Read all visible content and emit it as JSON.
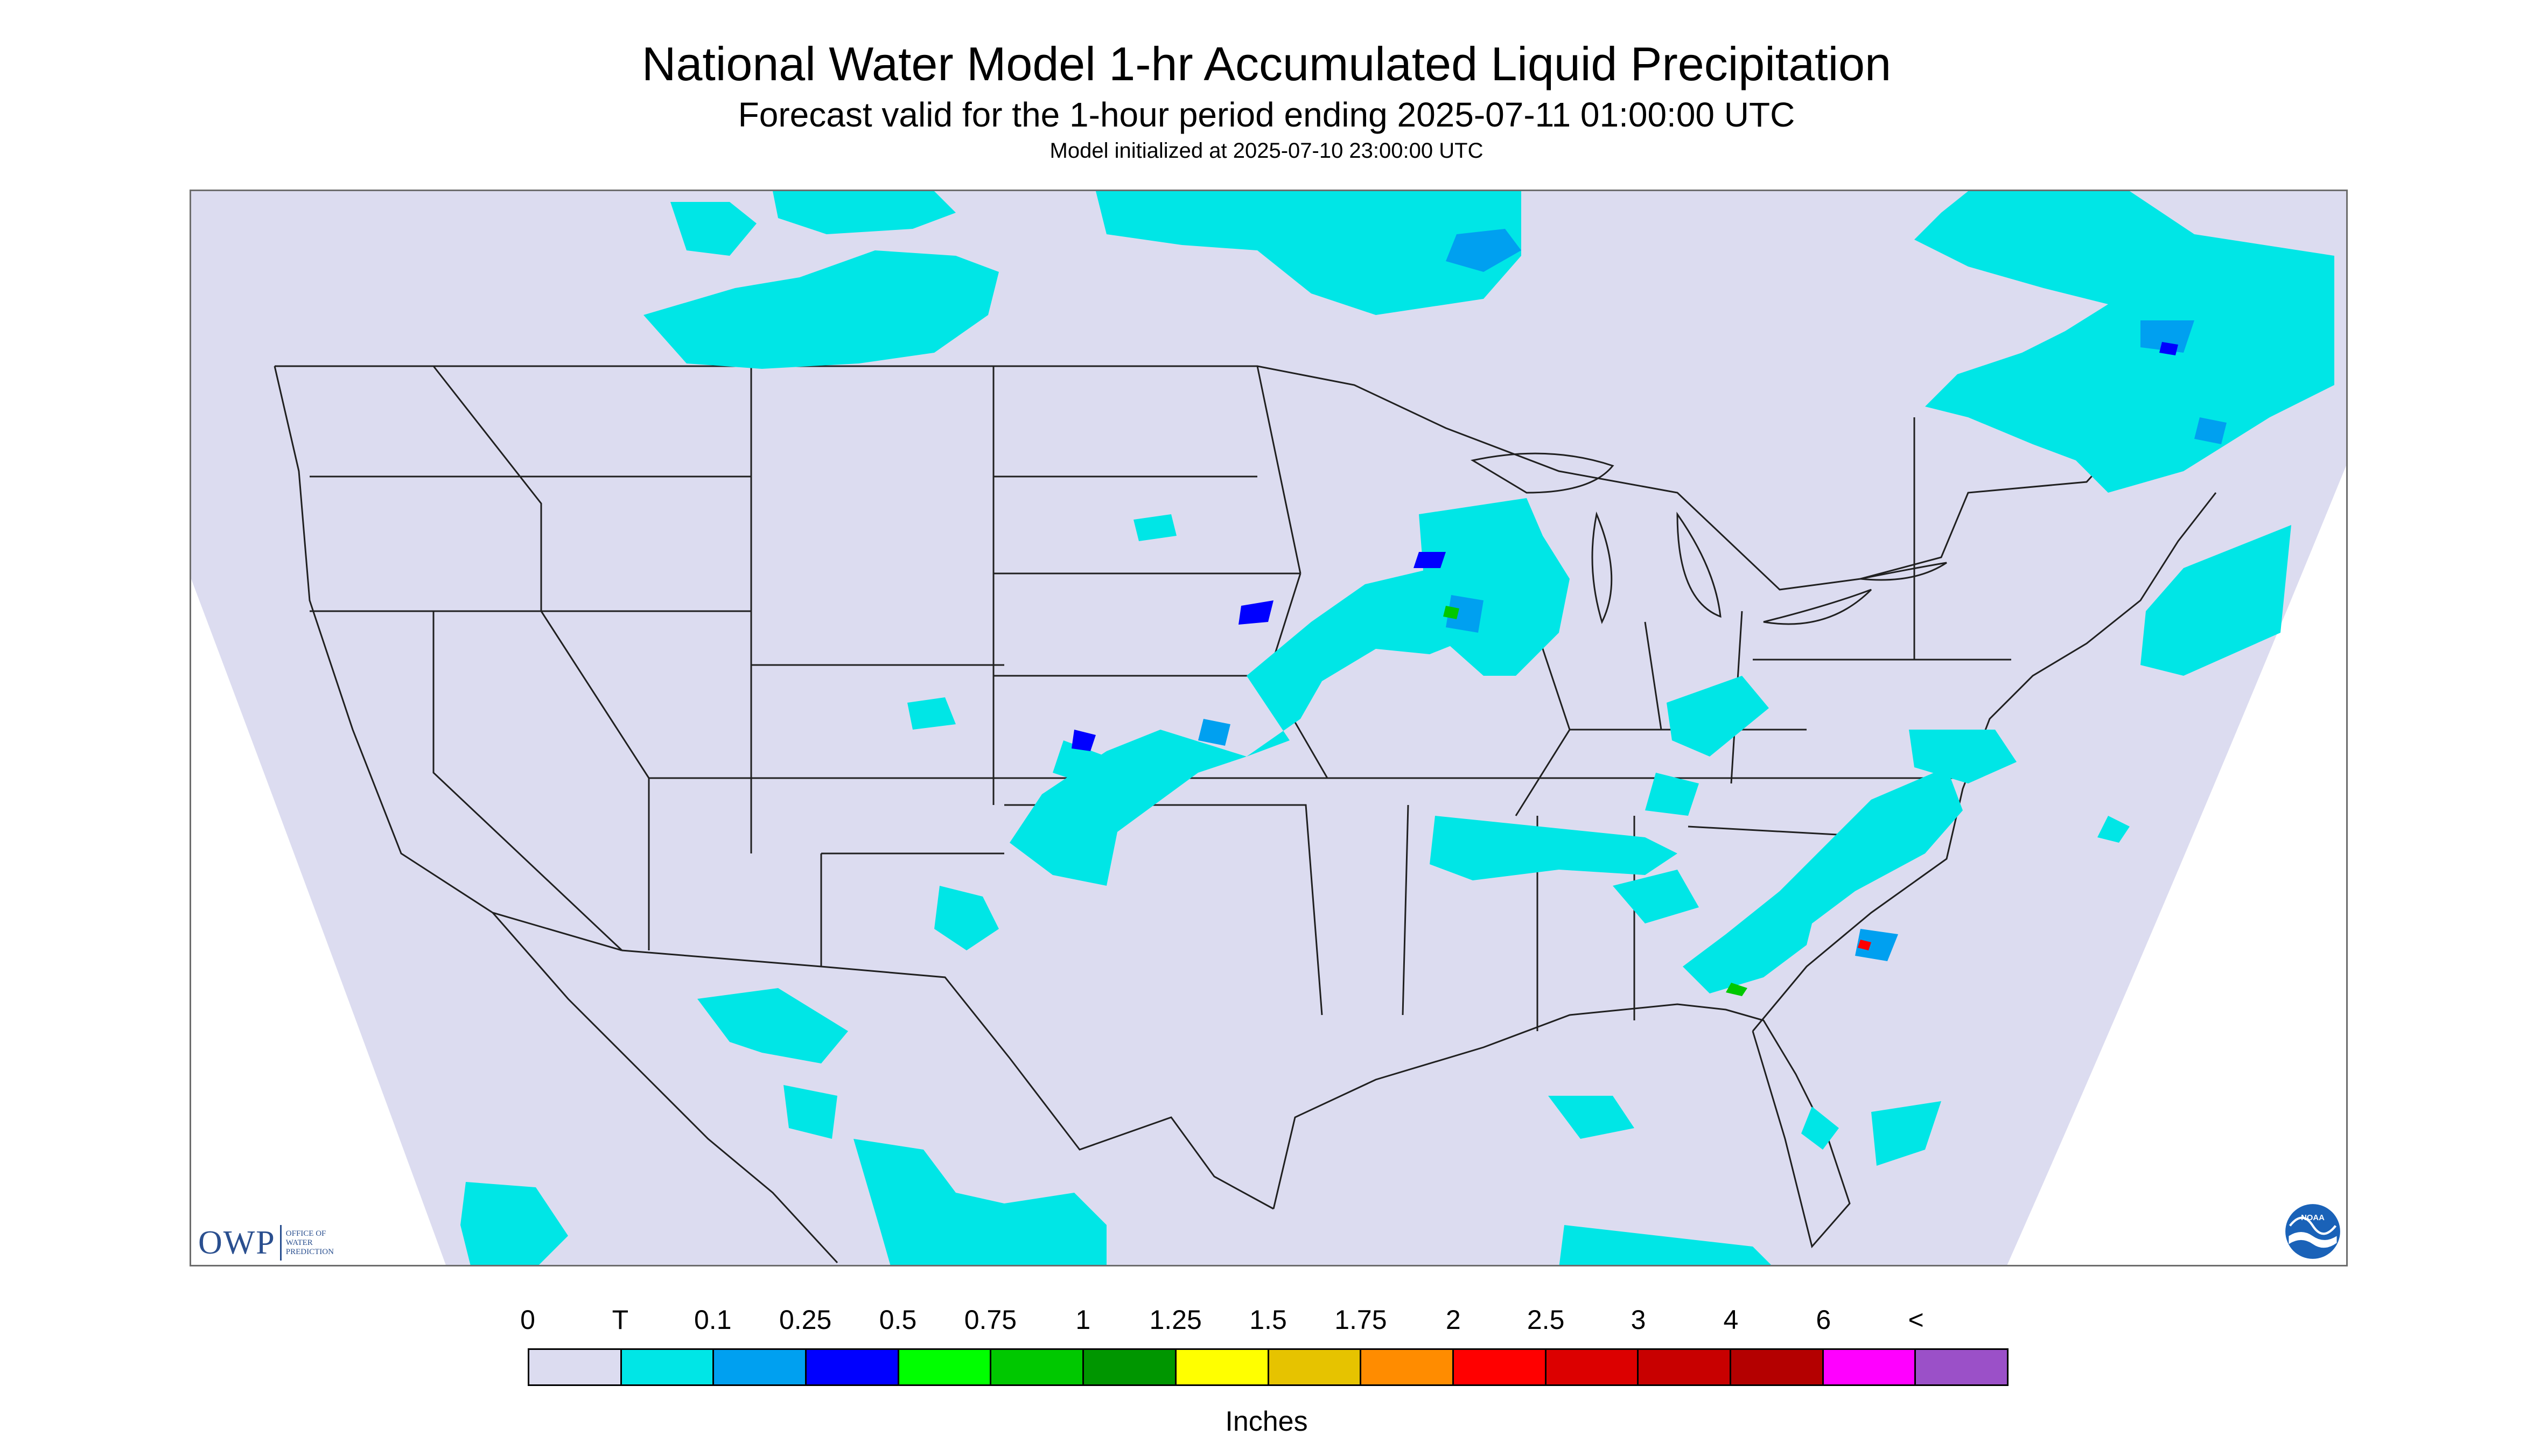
{
  "title": "National Water Model 1-hr Accumulated Liquid Precipitation",
  "subtitle": "Forecast valid for the 1-hour period ending 2025-07-11 01:00:00 UTC",
  "init_line": "Model initialized at 2025-07-10 23:00:00 UTC",
  "logos": {
    "owp": {
      "acronym": "OWP",
      "line1": "OFFICE OF",
      "line2": "WATER",
      "line3": "PREDICTION"
    },
    "noaa": {
      "text": "NOAA"
    }
  },
  "map": {
    "background_color": "#dcdcf0",
    "outside_color": "#ffffff",
    "boundary_color": "#202020"
  },
  "legend": {
    "labels": [
      "0",
      "T",
      "0.1",
      "0.25",
      "0.5",
      "0.75",
      "1",
      "1.25",
      "1.5",
      "1.75",
      "2",
      "2.5",
      "3",
      "4",
      "6",
      "<"
    ],
    "colors": [
      "#dcdcf0",
      "#00e6e6",
      "#00a0f0",
      "#0000ff",
      "#00ff00",
      "#00c800",
      "#009600",
      "#ffff00",
      "#e6c300",
      "#ff8c00",
      "#ff0000",
      "#dc0000",
      "#c80000",
      "#b40000",
      "#ff00ff",
      "#9b50c8"
    ],
    "units": "Inches"
  }
}
